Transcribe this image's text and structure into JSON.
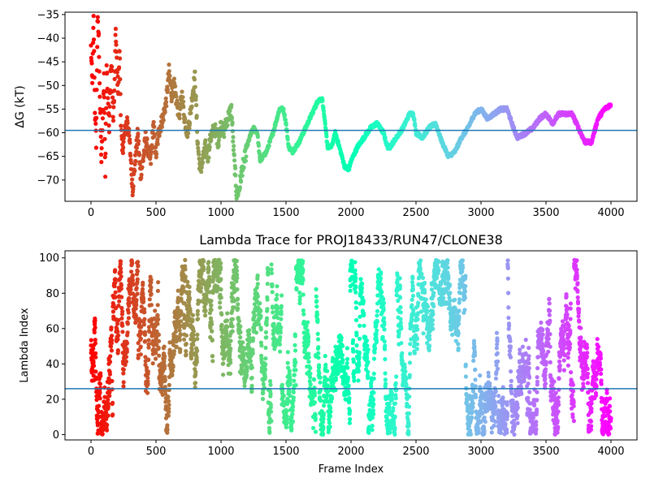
{
  "chart_data": [
    {
      "type": "scatter",
      "title": "",
      "xlabel": "",
      "ylabel": "ΔG (kT)",
      "xlim": [
        -200,
        4200
      ],
      "ylim": [
        -74.5,
        -34.5
      ],
      "xticks": [
        0,
        500,
        1000,
        1500,
        2000,
        2500,
        3000,
        3500,
        4000
      ],
      "yticks": [
        -70,
        -65,
        -60,
        -55,
        -50,
        -45,
        -40,
        -35
      ],
      "hline": -59.5,
      "hline_color": "#1f77b4",
      "colormap": "rainbow (red at frame 0 → violet at frame 4000)",
      "marker_size": 2.6,
      "anchors": [
        [
          0,
          -42
        ],
        [
          10,
          -50
        ],
        [
          20,
          -36
        ],
        [
          30,
          -55
        ],
        [
          40,
          -62
        ],
        [
          50,
          -36
        ],
        [
          60,
          -40
        ],
        [
          70,
          -55
        ],
        [
          80,
          -66
        ],
        [
          90,
          -58
        ],
        [
          100,
          -48
        ],
        [
          110,
          -69
        ],
        [
          120,
          -45
        ],
        [
          130,
          -52
        ],
        [
          140,
          -60
        ],
        [
          150,
          -47
        ],
        [
          160,
          -46
        ],
        [
          170,
          -57
        ],
        [
          180,
          -52
        ],
        [
          190,
          -38
        ],
        [
          200,
          -47
        ],
        [
          210,
          -51
        ],
        [
          220,
          -42
        ],
        [
          230,
          -58
        ],
        [
          240,
          -64
        ],
        [
          260,
          -60
        ],
        [
          280,
          -57
        ],
        [
          300,
          -63
        ],
        [
          320,
          -72
        ],
        [
          340,
          -66
        ],
        [
          360,
          -60
        ],
        [
          380,
          -69
        ],
        [
          400,
          -66
        ],
        [
          420,
          -61
        ],
        [
          440,
          -64
        ],
        [
          460,
          -66
        ],
        [
          480,
          -58
        ],
        [
          500,
          -65
        ],
        [
          520,
          -60
        ],
        [
          540,
          -58
        ],
        [
          560,
          -56
        ],
        [
          580,
          -53
        ],
        [
          600,
          -47
        ],
        [
          620,
          -52
        ],
        [
          640,
          -50
        ],
        [
          660,
          -54
        ],
        [
          680,
          -56
        ],
        [
          700,
          -52
        ],
        [
          720,
          -57
        ],
        [
          740,
          -60
        ],
        [
          760,
          -57
        ],
        [
          780,
          -52
        ],
        [
          800,
          -48
        ],
        [
          820,
          -62
        ],
        [
          840,
          -68
        ],
        [
          860,
          -66
        ],
        [
          880,
          -63
        ],
        [
          900,
          -65
        ],
        [
          920,
          -61
        ],
        [
          950,
          -59
        ],
        [
          980,
          -62
        ],
        [
          1000,
          -58
        ],
        [
          1020,
          -60
        ],
        [
          1050,
          -57
        ],
        [
          1080,
          -55
        ],
        [
          1100,
          -65
        ],
        [
          1120,
          -73
        ],
        [
          1140,
          -72
        ],
        [
          1160,
          -68
        ],
        [
          1180,
          -66
        ],
        [
          1200,
          -63
        ],
        [
          1220,
          -61
        ],
        [
          1250,
          -59
        ],
        [
          1280,
          -60
        ],
        [
          1300,
          -66
        ],
        [
          1350,
          -64
        ],
        [
          1400,
          -60
        ],
        [
          1450,
          -55
        ],
        [
          1480,
          -55
        ],
        [
          1500,
          -58
        ],
        [
          1520,
          -63
        ],
        [
          1550,
          -64
        ],
        [
          1600,
          -62
        ],
        [
          1650,
          -59
        ],
        [
          1700,
          -56
        ],
        [
          1750,
          -53
        ],
        [
          1780,
          -53
        ],
        [
          1800,
          -58
        ],
        [
          1820,
          -63
        ],
        [
          1850,
          -63
        ],
        [
          1880,
          -60
        ],
        [
          1920,
          -64
        ],
        [
          1950,
          -67
        ],
        [
          1980,
          -68
        ],
        [
          2000,
          -66
        ],
        [
          2050,
          -63
        ],
        [
          2100,
          -61
        ],
        [
          2150,
          -59
        ],
        [
          2200,
          -58
        ],
        [
          2250,
          -60
        ],
        [
          2280,
          -63
        ],
        [
          2300,
          -63
        ],
        [
          2350,
          -61
        ],
        [
          2400,
          -59
        ],
        [
          2450,
          -56
        ],
        [
          2480,
          -56
        ],
        [
          2500,
          -60
        ],
        [
          2550,
          -61
        ],
        [
          2600,
          -59
        ],
        [
          2650,
          -58
        ],
        [
          2700,
          -62
        ],
        [
          2750,
          -65
        ],
        [
          2800,
          -64
        ],
        [
          2850,
          -61
        ],
        [
          2900,
          -59
        ],
        [
          2950,
          -56
        ],
        [
          3000,
          -55
        ],
        [
          3050,
          -57
        ],
        [
          3100,
          -56
        ],
        [
          3150,
          -55
        ],
        [
          3200,
          -55
        ],
        [
          3250,
          -59
        ],
        [
          3280,
          -61
        ],
        [
          3350,
          -60
        ],
        [
          3400,
          -59
        ],
        [
          3450,
          -57
        ],
        [
          3500,
          -56
        ],
        [
          3550,
          -58
        ],
        [
          3600,
          -56
        ],
        [
          3700,
          -56
        ],
        [
          3750,
          -59
        ],
        [
          3800,
          -62
        ],
        [
          3850,
          -62
        ],
        [
          3900,
          -57
        ],
        [
          3950,
          -55
        ],
        [
          4000,
          -54
        ]
      ]
    },
    {
      "type": "scatter",
      "title": "Lambda Trace for PROJ18433/RUN47/CLONE38",
      "xlabel": "Frame Index",
      "ylabel": "Lambda Index",
      "xlim": [
        -200,
        4200
      ],
      "ylim": [
        -3,
        104
      ],
      "xticks": [
        0,
        500,
        1000,
        1500,
        2000,
        2500,
        3000,
        3500,
        4000
      ],
      "yticks": [
        0,
        20,
        40,
        60,
        80,
        100
      ],
      "hline": 26,
      "hline_color": "#1f77b4",
      "colormap": "rainbow (red at frame 0 → violet at frame 4000)",
      "marker_size": 2.6,
      "value_range": [
        0,
        99
      ],
      "n_points": 4001
    }
  ]
}
